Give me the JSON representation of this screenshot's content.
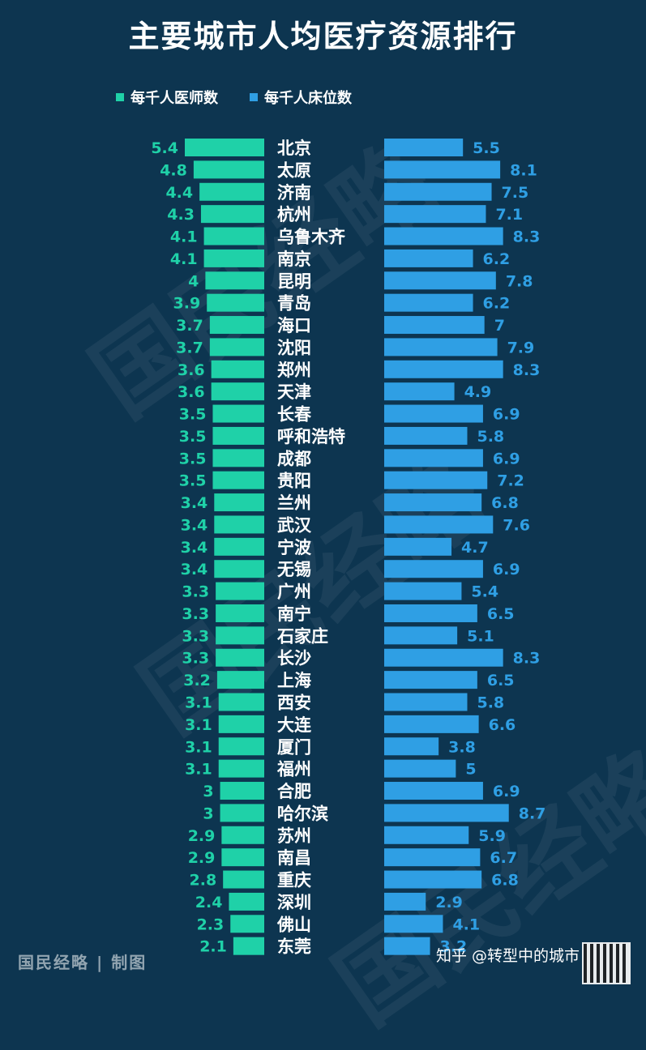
{
  "title": "主要城市人均医疗资源排行",
  "legend": {
    "doctors": "每千人医师数",
    "beds": "每千人床位数"
  },
  "footer": {
    "source": "国民经略 | 制图",
    "credit": "知乎 @转型中的城市"
  },
  "watermark": "国民经略",
  "colors": {
    "background": "#0d3550",
    "doctors": "#1fd1a8",
    "beds": "#2f9fe4"
  },
  "chart_data": {
    "type": "bar",
    "orientation": "horizontal-diverging",
    "categories": [
      "北京",
      "太原",
      "济南",
      "杭州",
      "乌鲁木齐",
      "南京",
      "昆明",
      "青岛",
      "海口",
      "沈阳",
      "郑州",
      "天津",
      "长春",
      "呼和浩特",
      "成都",
      "贵阳",
      "兰州",
      "武汉",
      "宁波",
      "无锡",
      "广州",
      "南宁",
      "石家庄",
      "长沙",
      "上海",
      "西安",
      "大连",
      "厦门",
      "福州",
      "合肥",
      "哈尔滨",
      "苏州",
      "南昌",
      "重庆",
      "深圳",
      "佛山",
      "东莞"
    ],
    "series": [
      {
        "name": "每千人医师数",
        "values": [
          5.4,
          4.8,
          4.4,
          4.3,
          4.1,
          4.1,
          4,
          3.9,
          3.7,
          3.7,
          3.6,
          3.6,
          3.5,
          3.5,
          3.5,
          3.5,
          3.4,
          3.4,
          3.4,
          3.4,
          3.3,
          3.3,
          3.3,
          3.3,
          3.2,
          3.1,
          3.1,
          3.1,
          3.1,
          3,
          3,
          2.9,
          2.9,
          2.8,
          2.4,
          2.3,
          2.1
        ]
      },
      {
        "name": "每千人床位数",
        "values": [
          5.5,
          8.1,
          7.5,
          7.1,
          8.3,
          6.2,
          7.8,
          6.2,
          7,
          7.9,
          8.3,
          4.9,
          6.9,
          5.8,
          6.9,
          7.2,
          6.8,
          7.6,
          4.7,
          6.9,
          5.4,
          6.5,
          5.1,
          8.3,
          6.5,
          5.8,
          6.6,
          3.8,
          5,
          6.9,
          8.7,
          5.9,
          6.7,
          6.8,
          2.9,
          4.1,
          3.2
        ]
      }
    ],
    "legend_position": "top-left",
    "grid": false
  }
}
